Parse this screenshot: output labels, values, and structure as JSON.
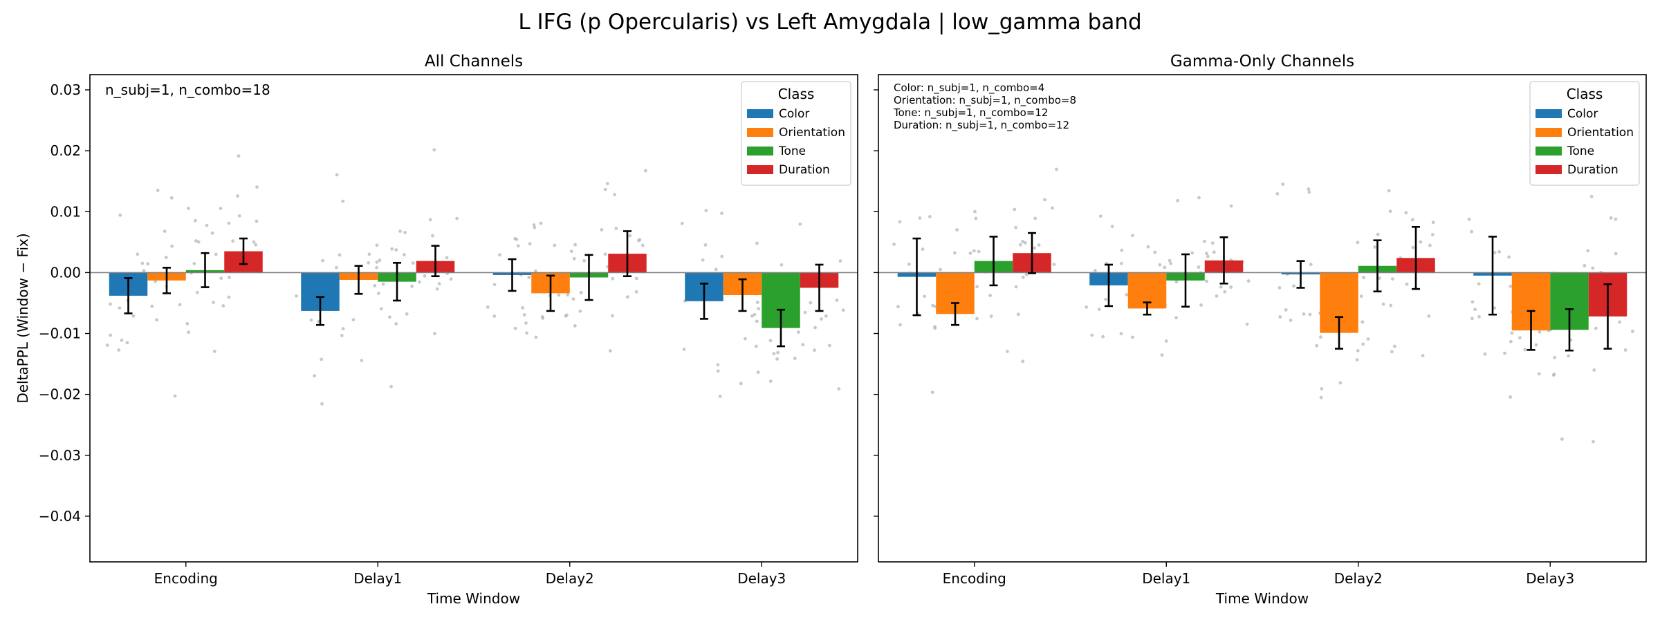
{
  "figure": {
    "suptitle": "L IFG (p Opercularis) vs Left Amygdala  |  low_gamma band"
  },
  "colors": {
    "Color": "#1f77b4",
    "Orientation": "#ff7f0e",
    "Tone": "#2ca02c",
    "Duration": "#d62728",
    "scatter": "#b5b5b5",
    "errorbar": "#000000",
    "zeroline": "#808080"
  },
  "chart_data": [
    {
      "type": "bar",
      "title": "All Channels",
      "xlabel": "Time Window",
      "ylabel": "DeltaPPL (Window − Fix)",
      "categories": [
        "Encoding",
        "Delay1",
        "Delay2",
        "Delay3"
      ],
      "ylim": [
        -0.0475,
        0.0325
      ],
      "yticks": [
        0.03,
        0.02,
        0.01,
        0.0,
        -0.01,
        -0.02,
        -0.03,
        -0.04
      ],
      "ytick_labels": [
        "0.03",
        "0.02",
        "0.01",
        "0.00",
        "−0.01",
        "−0.02",
        "−0.03",
        "−0.04"
      ],
      "grid": false,
      "legend": {
        "title": "Class",
        "position": "top-right"
      },
      "annotation": [
        "n_subj=1, n_combo=18"
      ],
      "series": [
        {
          "name": "Color",
          "values": [
            -0.0038,
            -0.0063,
            -0.0004,
            -0.0047
          ],
          "err": [
            0.0029,
            0.0023,
            0.0026,
            0.0029
          ]
        },
        {
          "name": "Orientation",
          "values": [
            -0.0013,
            -0.0012,
            -0.0034,
            -0.0037
          ],
          "err": [
            0.0021,
            0.0023,
            0.0029,
            0.0026
          ]
        },
        {
          "name": "Tone",
          "values": [
            0.0004,
            -0.0015,
            -0.0008,
            -0.0091
          ],
          "err": [
            0.0028,
            0.0031,
            0.0037,
            0.003
          ]
        },
        {
          "name": "Duration",
          "values": [
            0.0035,
            0.0019,
            0.0031,
            -0.0025
          ],
          "err": [
            0.0021,
            0.0025,
            0.0037,
            0.0038
          ]
        }
      ]
    },
    {
      "type": "bar",
      "title": "Gamma-Only Channels",
      "xlabel": "Time Window",
      "ylabel": "",
      "categories": [
        "Encoding",
        "Delay1",
        "Delay2",
        "Delay3"
      ],
      "ylim": [
        -0.0475,
        0.0325
      ],
      "yticks": [
        0.03,
        0.02,
        0.01,
        0.0,
        -0.01,
        -0.02,
        -0.03,
        -0.04
      ],
      "ytick_labels": [],
      "grid": false,
      "legend": {
        "title": "Class",
        "position": "top-right"
      },
      "annotation": [
        "Color: n_subj=1, n_combo=4",
        "Orientation: n_subj=1, n_combo=8",
        "Tone: n_subj=1, n_combo=12",
        "Duration: n_subj=1, n_combo=12"
      ],
      "series": [
        {
          "name": "Color",
          "values": [
            -0.0007,
            -0.0021,
            -0.0003,
            -0.0005
          ],
          "err": [
            0.0063,
            0.0034,
            0.0022,
            0.0064
          ]
        },
        {
          "name": "Orientation",
          "values": [
            -0.0068,
            -0.0059,
            -0.0099,
            -0.0095
          ],
          "err": [
            0.0018,
            0.001,
            0.0026,
            0.0032
          ]
        },
        {
          "name": "Tone",
          "values": [
            0.0019,
            -0.0013,
            0.0011,
            -0.0094
          ],
          "err": [
            0.004,
            0.0043,
            0.0042,
            0.0034
          ]
        },
        {
          "name": "Duration",
          "values": [
            0.0032,
            0.002,
            0.0024,
            -0.0072
          ],
          "err": [
            0.0033,
            0.0038,
            0.0051,
            0.0053
          ]
        }
      ]
    }
  ]
}
